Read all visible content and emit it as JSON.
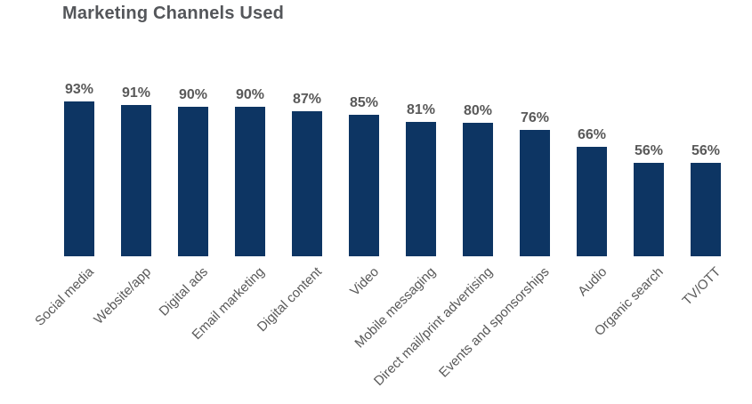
{
  "chart_data": {
    "type": "bar",
    "title": "Marketing Channels Used",
    "categories": [
      "Social media",
      "Website/app",
      "Digital ads",
      "Email marketing",
      "Digital content",
      "Video",
      "Mobile messaging",
      "Direct mail/print advertising",
      "Events and sponsorships",
      "Audio",
      "Organic search",
      "TV/OTT"
    ],
    "values": [
      93,
      91,
      90,
      90,
      87,
      85,
      81,
      80,
      76,
      66,
      56,
      56
    ],
    "value_labels": [
      "93%",
      "91%",
      "90%",
      "90%",
      "87%",
      "85%",
      "81%",
      "80%",
      "76%",
      "66%",
      "56%",
      "56%"
    ],
    "xlabel": "",
    "ylabel": "",
    "ylim": [
      0,
      100
    ],
    "grid": false,
    "legend": false,
    "axis_lines": false,
    "colors": {
      "bar": "#0d3563",
      "value_label": "#595959",
      "category_label": "#595959",
      "title": "#54565a"
    }
  }
}
